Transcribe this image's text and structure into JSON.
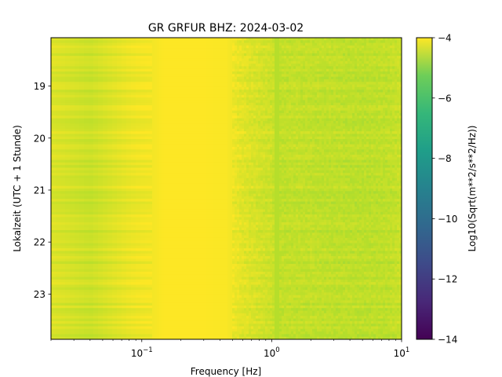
{
  "chart_data": {
    "type": "heatmap",
    "title": "GR GRFUR  BHZ: 2024-03-02",
    "xlabel": "Frequency [Hz]",
    "ylabel": "Lokalzeit (UTC + 1 Stunde)",
    "colorbar_label": "Log10(Sqrt(m**2/s**2/Hz))",
    "colormap": "viridis",
    "x_scale": "log",
    "x_range": [
      0.02,
      10
    ],
    "x_ticks": [
      {
        "value": 0.1,
        "base": "10",
        "exp": "−1"
      },
      {
        "value": 1,
        "base": "10",
        "exp": "0"
      },
      {
        "value": 10,
        "base": "10",
        "exp": "1"
      }
    ],
    "y_range": [
      18.07,
      23.87
    ],
    "y_inverted": true,
    "y_ticks": [
      19,
      20,
      21,
      22,
      23
    ],
    "color_range": [
      -14,
      -4
    ],
    "color_ticks": [
      {
        "value": -4,
        "label": "−4"
      },
      {
        "value": -6,
        "label": "−6"
      },
      {
        "value": -8,
        "label": "−8"
      },
      {
        "value": -10,
        "label": "−10"
      },
      {
        "value": -12,
        "label": "−12"
      },
      {
        "value": -14,
        "label": "−14"
      }
    ],
    "frequency_profile": {
      "frequency_hz": [
        0.02,
        0.04,
        0.06,
        0.08,
        0.1,
        0.12,
        0.15,
        0.2,
        0.3,
        0.45,
        0.55,
        0.7,
        1.0,
        1.1,
        1.5,
        2.5,
        5.0,
        8.0,
        10.0
      ],
      "log10_amplitude": [
        -4.5,
        -4.8,
        -4.5,
        -4.3,
        -4.2,
        -4.15,
        -4.0,
        -4.0,
        -4.0,
        -4.05,
        -4.35,
        -4.55,
        -4.75,
        -4.95,
        -4.9,
        -4.95,
        -5.0,
        -4.95,
        -4.8
      ]
    },
    "features": {
      "line_frequency_hz": 1.1,
      "line_log10_amplitude": -5.1
    }
  }
}
